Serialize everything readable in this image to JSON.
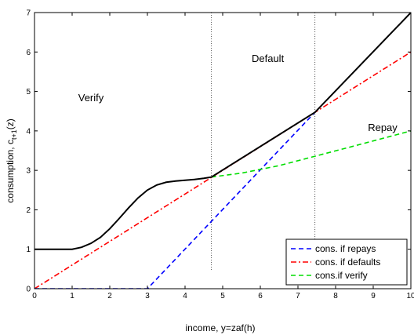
{
  "chart_data": {
    "type": "line",
    "title": "",
    "xlabel": "income, y=zaf(h)",
    "ylabel_main": "consumption, c",
    "ylabel_sub": "t+1",
    "ylabel_tail": "(z)",
    "xlim": [
      0,
      10
    ],
    "ylim": [
      0,
      7
    ],
    "x_ticks": [
      "0",
      "1",
      "2",
      "3",
      "4",
      "5",
      "6",
      "7",
      "8",
      "9",
      "10"
    ],
    "y_ticks": [
      "0",
      "1",
      "2",
      "3",
      "4",
      "5",
      "6",
      "7"
    ],
    "grid": false,
    "legend_position": "bottom-right",
    "vlines": [
      4.7,
      7.45
    ],
    "annotations": [
      {
        "text": "Verify",
        "x": 1.5,
        "y": 4.75
      },
      {
        "text": "Default",
        "x": 6.2,
        "y": 5.75
      },
      {
        "text": "Repay",
        "x": 9.25,
        "y": 4.0
      }
    ],
    "series": [
      {
        "name": "cons. if repays",
        "style": "dashed",
        "color": "#0000ff",
        "x": [
          0,
          3,
          7.45
        ],
        "y": [
          0,
          0,
          4.47
        ]
      },
      {
        "name": "cons. if defaults",
        "style": "dashdot",
        "color": "#ff0000",
        "x": [
          0,
          10
        ],
        "y": [
          0,
          6
        ]
      },
      {
        "name": "cons.if verify",
        "style": "dashed",
        "color": "#00dd00",
        "x": [
          4.7,
          5.5,
          6.5,
          7.5,
          8.5,
          10
        ],
        "y": [
          2.83,
          2.93,
          3.12,
          3.37,
          3.62,
          4.0
        ]
      },
      {
        "name": "",
        "style": "solid",
        "color": "#000000",
        "x": [
          0,
          1,
          1.25,
          1.5,
          1.75,
          2,
          2.25,
          2.5,
          2.75,
          3,
          3.25,
          3.5,
          3.75,
          4,
          4.25,
          4.5,
          4.7,
          7.45,
          10
        ],
        "y": [
          1,
          1,
          1.05,
          1.15,
          1.3,
          1.52,
          1.78,
          2.05,
          2.3,
          2.5,
          2.63,
          2.7,
          2.73,
          2.75,
          2.77,
          2.8,
          2.83,
          4.47,
          7
        ]
      }
    ]
  }
}
